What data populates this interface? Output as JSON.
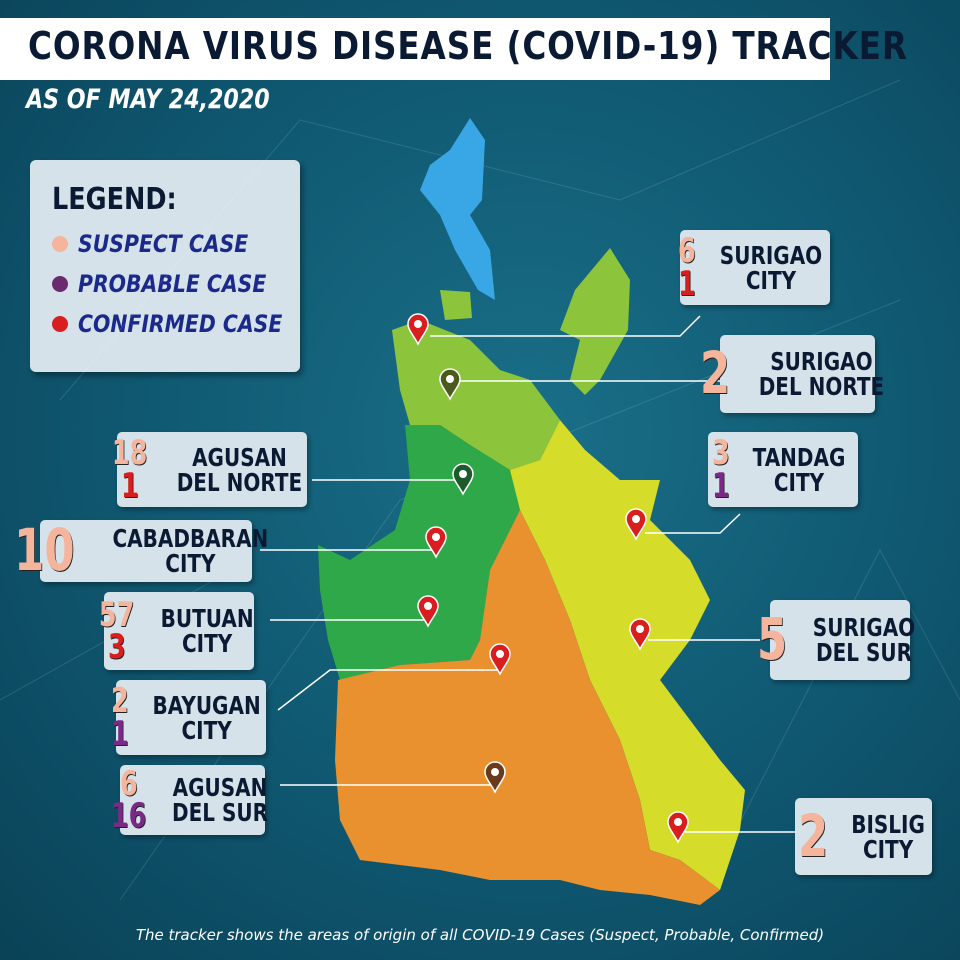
{
  "header": {
    "title": "CORONA VIRUS DISEASE (COVID-19) TRACKER",
    "subtitle": "AS OF MAY 24,2020"
  },
  "legend": {
    "title": "LEGEND:",
    "items": [
      {
        "label": "SUSPECT CASE",
        "color": "#f5b49c"
      },
      {
        "label": "PROBABLE CASE",
        "color": "#6a2a6e"
      },
      {
        "label": "CONFIRMED CASE",
        "color": "#d81e1e"
      }
    ]
  },
  "locations": [
    {
      "name_line1": "SURIGAO",
      "name_line2": "CITY",
      "suspect": "6",
      "confirmed": "1"
    },
    {
      "name_line1": "SURIGAO",
      "name_line2": "DEL NORTE",
      "suspect": "2"
    },
    {
      "name_line1": "TANDAG",
      "name_line2": "CITY",
      "suspect": "3",
      "probable": "1"
    },
    {
      "name_line1": "SURIGAO",
      "name_line2": "DEL SUR",
      "suspect": "5"
    },
    {
      "name_line1": "BISLIG",
      "name_line2": "CITY",
      "suspect": "2"
    },
    {
      "name_line1": "AGUSAN",
      "name_line2": "DEL NORTE",
      "suspect": "18",
      "confirmed": "1"
    },
    {
      "name_line1": "CABADBARAN",
      "name_line2": "CITY",
      "suspect": "10"
    },
    {
      "name_line1": "BUTUAN",
      "name_line2": "CITY",
      "suspect": "57",
      "confirmed": "3"
    },
    {
      "name_line1": "BAYUGAN",
      "name_line2": "CITY",
      "suspect": "2",
      "probable": "1"
    },
    {
      "name_line1": "AGUSAN",
      "name_line2": "DEL SUR",
      "suspect": "6",
      "probable": "16"
    }
  ],
  "colors": {
    "background": "#0f5770",
    "agusan_del_sur": "#e8912e",
    "surigao_del_sur": "#d6dc2a",
    "agusan_del_norte": "#2fa84a",
    "surigao_del_norte": "#8cc43c",
    "dinagat": "#39a7e6"
  },
  "footer": "The tracker shows the areas of origin of all COVID-19 Cases (Suspect, Probable, Confirmed)"
}
